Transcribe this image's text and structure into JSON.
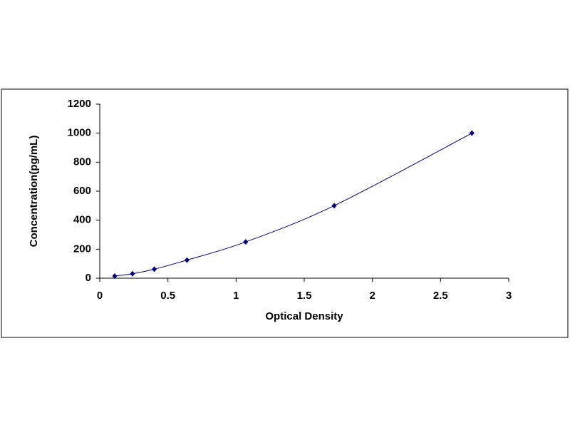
{
  "chart_data": {
    "type": "scatter",
    "xlabel": "Optical Density",
    "ylabel": "Concentration(pg/mL)",
    "x": [
      0.11,
      0.24,
      0.4,
      0.64,
      1.07,
      1.72,
      2.73
    ],
    "values": [
      15,
      31,
      62,
      125,
      250,
      500,
      1000
    ],
    "color": "#000080",
    "smooth_line": true,
    "xlim": [
      0,
      3
    ],
    "xticks": [
      0,
      0.5,
      1,
      1.5,
      2,
      2.5,
      3
    ],
    "ylim": [
      0,
      1200
    ],
    "yticks": [
      0,
      200,
      400,
      600,
      800,
      1000,
      1200
    ],
    "grid": false
  }
}
